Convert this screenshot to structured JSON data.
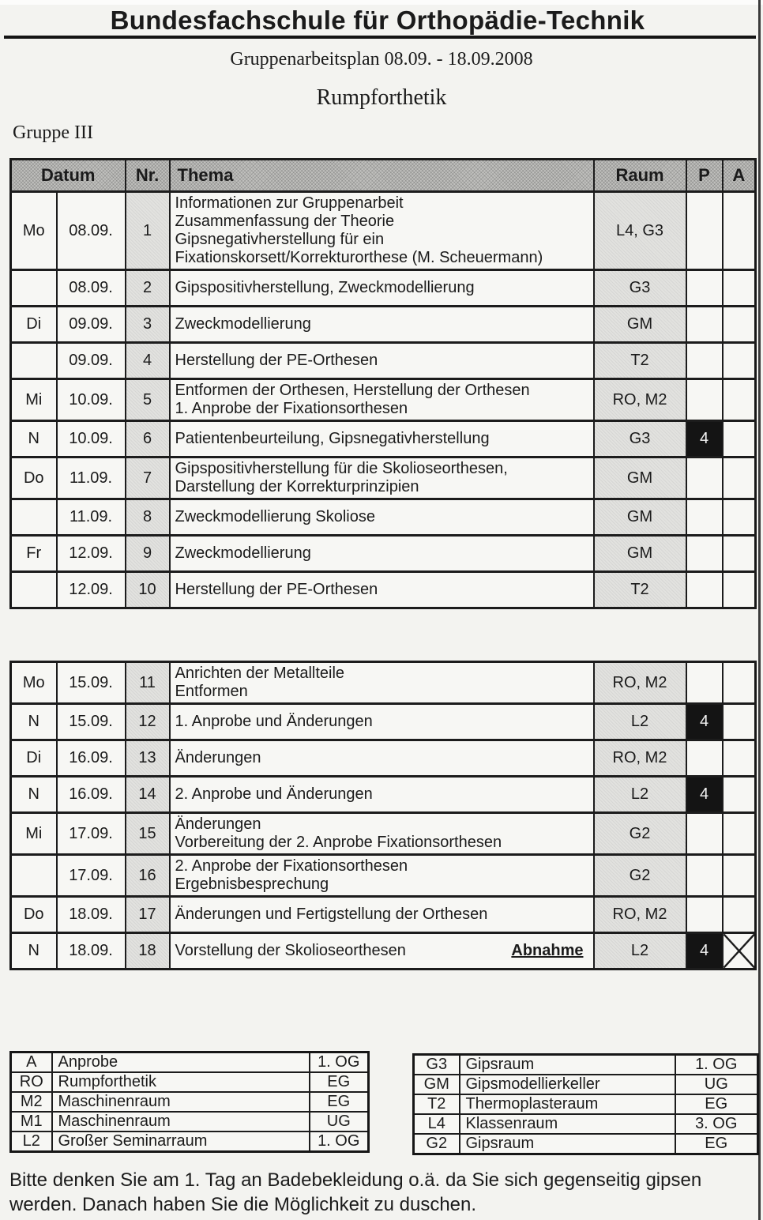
{
  "page": {
    "title": "Bundesfachschule für Orthopädie-Technik",
    "subtitle": "Gruppenarbeitsplan 08.09. - 18.09.2008",
    "course": "Rumpforthetik",
    "group": "Gruppe III",
    "note_lines": {
      "0": "Bitte denken Sie am 1. Tag an Badebekleidung o.ä. da Sie sich gegenseitig gipsen",
      "1": "werden. Danach haben Sie die Möglichkeit zu duschen."
    }
  },
  "colors": {
    "paper": "#f3f3f0",
    "ink": "#1b1b1b",
    "header_hatch": "#c1c1be",
    "column_stripe": "#e2e2df",
    "p_cell_filled_bg": "#141414",
    "p_cell_filled_text": "#f3f3f3"
  },
  "table": {
    "headers": {
      "datum": "Datum",
      "nr": "Nr.",
      "thema": "Thema",
      "raum": "Raum",
      "p": "P",
      "a": "A"
    }
  },
  "week1": {
    "rows": [
      {
        "day": "Mo",
        "date": "08.09.",
        "nr": "1",
        "thema": [
          "Informationen zur Gruppenarbeit",
          "Zusammenfassung der Theorie",
          "Gipsnegativherstellung für ein",
          "Fixationskorsett/Korrekturorthese (M. Scheuermann)"
        ],
        "raum": "L4, G3",
        "p": "",
        "a_cross": false
      },
      {
        "day": "",
        "date": "08.09.",
        "nr": "2",
        "thema": [
          "Gipspositivherstellung, Zweckmodellierung"
        ],
        "raum": "G3",
        "p": "",
        "a_cross": false
      },
      {
        "day": "Di",
        "date": "09.09.",
        "nr": "3",
        "thema": [
          "Zweckmodellierung"
        ],
        "raum": "GM",
        "p": "",
        "a_cross": false
      },
      {
        "day": "",
        "date": "09.09.",
        "nr": "4",
        "thema": [
          "Herstellung der PE-Orthesen"
        ],
        "raum": "T2",
        "p": "",
        "a_cross": false
      },
      {
        "day": "Mi",
        "date": "10.09.",
        "nr": "5",
        "thema": [
          "Entformen der Orthesen, Herstellung der Orthesen",
          "1. Anprobe der Fixationsorthesen"
        ],
        "raum": "RO, M2",
        "p": "",
        "a_cross": false
      },
      {
        "day": "N",
        "date": "10.09.",
        "nr": "6",
        "thema": [
          "Patientenbeurteilung, Gipsnegativherstellung"
        ],
        "raum": "G3",
        "p": "4",
        "a_cross": false
      },
      {
        "day": "Do",
        "date": "11.09.",
        "nr": "7",
        "thema": [
          "Gipspositivherstellung für die Skolioseorthesen,",
          "Darstellung der Korrekturprinzipien"
        ],
        "raum": "GM",
        "p": "",
        "a_cross": false
      },
      {
        "day": "",
        "date": "11.09.",
        "nr": "8",
        "thema": [
          "Zweckmodellierung Skoliose"
        ],
        "raum": "GM",
        "p": "",
        "a_cross": false
      },
      {
        "day": "Fr",
        "date": "12.09.",
        "nr": "9",
        "thema": [
          "Zweckmodellierung"
        ],
        "raum": "GM",
        "p": "",
        "a_cross": false
      },
      {
        "day": "",
        "date": "12.09.",
        "nr": "10",
        "thema": [
          "Herstellung der PE-Orthesen"
        ],
        "raum": "T2",
        "p": "",
        "a_cross": false
      }
    ]
  },
  "week2": {
    "rows": [
      {
        "day": "Mo",
        "date": "15.09.",
        "nr": "11",
        "thema": [
          "Anrichten der Metallteile",
          "Entformen"
        ],
        "raum": "RO, M2",
        "p": "",
        "a_cross": false
      },
      {
        "day": "N",
        "date": "15.09.",
        "nr": "12",
        "thema": [
          "1. Anprobe und Änderungen"
        ],
        "raum": "L2",
        "p": "4",
        "a_cross": false
      },
      {
        "day": "Di",
        "date": "16.09.",
        "nr": "13",
        "thema": [
          "Änderungen"
        ],
        "raum": "RO, M2",
        "p": "",
        "a_cross": false
      },
      {
        "day": "N",
        "date": "16.09.",
        "nr": "14",
        "thema": [
          "2. Anprobe und Änderungen"
        ],
        "raum": "L2",
        "p": "4",
        "a_cross": false
      },
      {
        "day": "Mi",
        "date": "17.09.",
        "nr": "15",
        "thema": [
          "Änderungen",
          "Vorbereitung der 2. Anprobe Fixationsorthesen"
        ],
        "raum": "G2",
        "p": "",
        "a_cross": false
      },
      {
        "day": "",
        "date": "17.09.",
        "nr": "16",
        "thema": [
          "2. Anprobe der Fixationsorthesen",
          "Ergebnisbesprechung"
        ],
        "raum": "G2",
        "p": "",
        "a_cross": false
      },
      {
        "day": "Do",
        "date": "18.09.",
        "nr": "17",
        "thema": [
          "Änderungen und Fertigstellung der Orthesen"
        ],
        "raum": "RO, M2",
        "p": "",
        "a_cross": false
      },
      {
        "day": "N",
        "date": "18.09.",
        "nr": "18",
        "thema": [
          "Vorstellung der Skolioseorthesen"
        ],
        "annotation": "Abnahme",
        "raum": "L2",
        "p": "4",
        "a_cross": true
      }
    ]
  },
  "legend_left": {
    "rows": [
      {
        "code": "A",
        "name": "Anprobe",
        "floor": "1. OG"
      },
      {
        "code": "RO",
        "name": "Rumpforthetik",
        "floor": "EG"
      },
      {
        "code": "M2",
        "name": "Maschinenraum",
        "floor": "EG"
      },
      {
        "code": "M1",
        "name": "Maschinenraum",
        "floor": "UG"
      },
      {
        "code": "L2",
        "name": "Großer Seminarraum",
        "floor": "1. OG"
      }
    ]
  },
  "legend_right": {
    "rows": [
      {
        "code": "G3",
        "name": "Gipsraum",
        "floor": "1. OG"
      },
      {
        "code": "GM",
        "name": "Gipsmodellierkeller",
        "floor": "UG"
      },
      {
        "code": "T2",
        "name": "Thermoplasteraum",
        "floor": "EG"
      },
      {
        "code": "L4",
        "name": "Klassenraum",
        "floor": "3. OG"
      },
      {
        "code": "G2",
        "name": "Gipsraum",
        "floor": "EG"
      }
    ]
  }
}
